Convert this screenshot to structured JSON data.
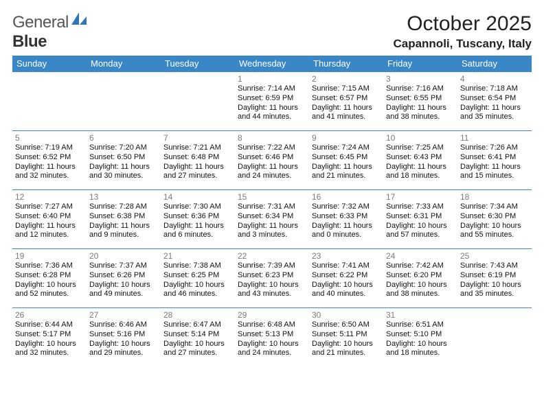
{
  "brand": {
    "part1": "General",
    "part2": "Blue"
  },
  "title": "October 2025",
  "location": "Capannoli, Tuscany, Italy",
  "colors": {
    "header_bg": "#3a87c8",
    "header_text": "#ffffff",
    "day_num": "#7a7a7a",
    "text": "#111111",
    "rule": "#3a87c8",
    "logo_blue": "#2f77b8"
  },
  "weekdays": [
    "Sunday",
    "Monday",
    "Tuesday",
    "Wednesday",
    "Thursday",
    "Friday",
    "Saturday"
  ],
  "weeks": [
    [
      null,
      null,
      null,
      {
        "n": "1",
        "sr": "Sunrise: 7:14 AM",
        "ss": "Sunset: 6:59 PM",
        "d1": "Daylight: 11 hours",
        "d2": "and 44 minutes."
      },
      {
        "n": "2",
        "sr": "Sunrise: 7:15 AM",
        "ss": "Sunset: 6:57 PM",
        "d1": "Daylight: 11 hours",
        "d2": "and 41 minutes."
      },
      {
        "n": "3",
        "sr": "Sunrise: 7:16 AM",
        "ss": "Sunset: 6:55 PM",
        "d1": "Daylight: 11 hours",
        "d2": "and 38 minutes."
      },
      {
        "n": "4",
        "sr": "Sunrise: 7:18 AM",
        "ss": "Sunset: 6:54 PM",
        "d1": "Daylight: 11 hours",
        "d2": "and 35 minutes."
      }
    ],
    [
      {
        "n": "5",
        "sr": "Sunrise: 7:19 AM",
        "ss": "Sunset: 6:52 PM",
        "d1": "Daylight: 11 hours",
        "d2": "and 32 minutes."
      },
      {
        "n": "6",
        "sr": "Sunrise: 7:20 AM",
        "ss": "Sunset: 6:50 PM",
        "d1": "Daylight: 11 hours",
        "d2": "and 30 minutes."
      },
      {
        "n": "7",
        "sr": "Sunrise: 7:21 AM",
        "ss": "Sunset: 6:48 PM",
        "d1": "Daylight: 11 hours",
        "d2": "and 27 minutes."
      },
      {
        "n": "8",
        "sr": "Sunrise: 7:22 AM",
        "ss": "Sunset: 6:46 PM",
        "d1": "Daylight: 11 hours",
        "d2": "and 24 minutes."
      },
      {
        "n": "9",
        "sr": "Sunrise: 7:24 AM",
        "ss": "Sunset: 6:45 PM",
        "d1": "Daylight: 11 hours",
        "d2": "and 21 minutes."
      },
      {
        "n": "10",
        "sr": "Sunrise: 7:25 AM",
        "ss": "Sunset: 6:43 PM",
        "d1": "Daylight: 11 hours",
        "d2": "and 18 minutes."
      },
      {
        "n": "11",
        "sr": "Sunrise: 7:26 AM",
        "ss": "Sunset: 6:41 PM",
        "d1": "Daylight: 11 hours",
        "d2": "and 15 minutes."
      }
    ],
    [
      {
        "n": "12",
        "sr": "Sunrise: 7:27 AM",
        "ss": "Sunset: 6:40 PM",
        "d1": "Daylight: 11 hours",
        "d2": "and 12 minutes."
      },
      {
        "n": "13",
        "sr": "Sunrise: 7:28 AM",
        "ss": "Sunset: 6:38 PM",
        "d1": "Daylight: 11 hours",
        "d2": "and 9 minutes."
      },
      {
        "n": "14",
        "sr": "Sunrise: 7:30 AM",
        "ss": "Sunset: 6:36 PM",
        "d1": "Daylight: 11 hours",
        "d2": "and 6 minutes."
      },
      {
        "n": "15",
        "sr": "Sunrise: 7:31 AM",
        "ss": "Sunset: 6:34 PM",
        "d1": "Daylight: 11 hours",
        "d2": "and 3 minutes."
      },
      {
        "n": "16",
        "sr": "Sunrise: 7:32 AM",
        "ss": "Sunset: 6:33 PM",
        "d1": "Daylight: 11 hours",
        "d2": "and 0 minutes."
      },
      {
        "n": "17",
        "sr": "Sunrise: 7:33 AM",
        "ss": "Sunset: 6:31 PM",
        "d1": "Daylight: 10 hours",
        "d2": "and 57 minutes."
      },
      {
        "n": "18",
        "sr": "Sunrise: 7:34 AM",
        "ss": "Sunset: 6:30 PM",
        "d1": "Daylight: 10 hours",
        "d2": "and 55 minutes."
      }
    ],
    [
      {
        "n": "19",
        "sr": "Sunrise: 7:36 AM",
        "ss": "Sunset: 6:28 PM",
        "d1": "Daylight: 10 hours",
        "d2": "and 52 minutes."
      },
      {
        "n": "20",
        "sr": "Sunrise: 7:37 AM",
        "ss": "Sunset: 6:26 PM",
        "d1": "Daylight: 10 hours",
        "d2": "and 49 minutes."
      },
      {
        "n": "21",
        "sr": "Sunrise: 7:38 AM",
        "ss": "Sunset: 6:25 PM",
        "d1": "Daylight: 10 hours",
        "d2": "and 46 minutes."
      },
      {
        "n": "22",
        "sr": "Sunrise: 7:39 AM",
        "ss": "Sunset: 6:23 PM",
        "d1": "Daylight: 10 hours",
        "d2": "and 43 minutes."
      },
      {
        "n": "23",
        "sr": "Sunrise: 7:41 AM",
        "ss": "Sunset: 6:22 PM",
        "d1": "Daylight: 10 hours",
        "d2": "and 40 minutes."
      },
      {
        "n": "24",
        "sr": "Sunrise: 7:42 AM",
        "ss": "Sunset: 6:20 PM",
        "d1": "Daylight: 10 hours",
        "d2": "and 38 minutes."
      },
      {
        "n": "25",
        "sr": "Sunrise: 7:43 AM",
        "ss": "Sunset: 6:19 PM",
        "d1": "Daylight: 10 hours",
        "d2": "and 35 minutes."
      }
    ],
    [
      {
        "n": "26",
        "sr": "Sunrise: 6:44 AM",
        "ss": "Sunset: 5:17 PM",
        "d1": "Daylight: 10 hours",
        "d2": "and 32 minutes."
      },
      {
        "n": "27",
        "sr": "Sunrise: 6:46 AM",
        "ss": "Sunset: 5:16 PM",
        "d1": "Daylight: 10 hours",
        "d2": "and 29 minutes."
      },
      {
        "n": "28",
        "sr": "Sunrise: 6:47 AM",
        "ss": "Sunset: 5:14 PM",
        "d1": "Daylight: 10 hours",
        "d2": "and 27 minutes."
      },
      {
        "n": "29",
        "sr": "Sunrise: 6:48 AM",
        "ss": "Sunset: 5:13 PM",
        "d1": "Daylight: 10 hours",
        "d2": "and 24 minutes."
      },
      {
        "n": "30",
        "sr": "Sunrise: 6:50 AM",
        "ss": "Sunset: 5:11 PM",
        "d1": "Daylight: 10 hours",
        "d2": "and 21 minutes."
      },
      {
        "n": "31",
        "sr": "Sunrise: 6:51 AM",
        "ss": "Sunset: 5:10 PM",
        "d1": "Daylight: 10 hours",
        "d2": "and 18 minutes."
      },
      null
    ]
  ]
}
